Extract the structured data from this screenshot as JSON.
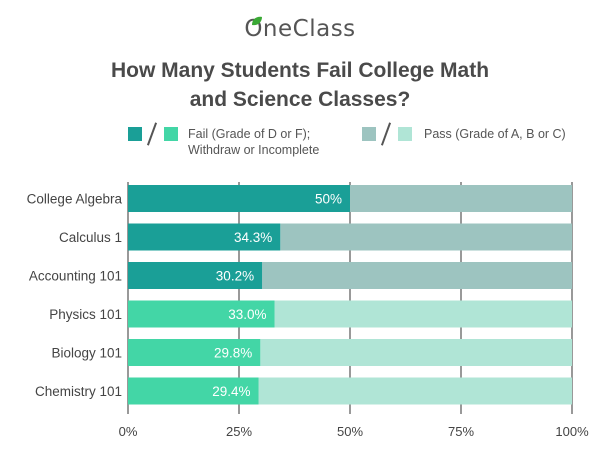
{
  "logo": {
    "text": "OneClass",
    "icon": "leaf-icon",
    "icon_color": "#3aa935"
  },
  "chart_data": {
    "type": "bar",
    "orientation": "horizontal",
    "stacked": true,
    "title": "How Many Students Fail College Math and Science Classes?",
    "title_lines": [
      "How Many Students Fail College Math",
      "and Science Classes?"
    ],
    "categories": [
      "College Algebra",
      "Calculus 1",
      "Accounting 101",
      "Physics 101",
      "Biology 101",
      "Chemistry 101"
    ],
    "series": [
      {
        "name": "Fail (Grade of D or F); Withdraw or Incomplete",
        "values": [
          50,
          34.3,
          30.2,
          33.0,
          29.8,
          29.4
        ]
      },
      {
        "name": "Pass (Grade of A, B or C)",
        "values": [
          50,
          65.7,
          69.8,
          67.0,
          70.2,
          70.6
        ]
      }
    ],
    "data_labels": [
      "50%",
      "34.3%",
      "30.2%",
      "33.0%",
      "29.8%",
      "29.4%"
    ],
    "x_ticks": [
      "0%",
      "25%",
      "50%",
      "75%",
      "100%"
    ],
    "xlim": [
      0,
      100
    ],
    "grid": true,
    "legend_position": "top",
    "legend": {
      "fail_line1": "Fail (Grade of D or F);",
      "fail_line2": "Withdraw or Incomplete",
      "pass": "Pass (Grade of A, B or C)"
    },
    "colors": {
      "fail_dark": "#1a9f97",
      "fail_light": "#43d6a6",
      "pass_dark": "#9dc4c0",
      "pass_light": "#b0e5d6",
      "row_color_group": [
        "dark",
        "dark",
        "dark",
        "light",
        "light",
        "light"
      ]
    }
  }
}
